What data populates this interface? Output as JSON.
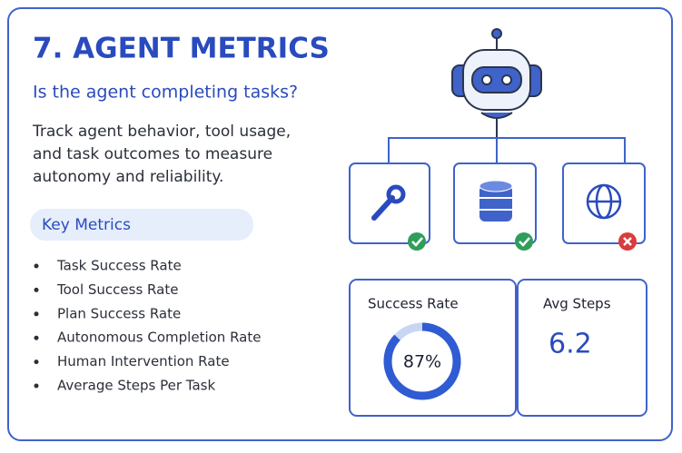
{
  "header": {
    "title": "7. AGENT METRICS",
    "subtitle": "Is the agent completing tasks?"
  },
  "description": [
    "Track agent behavior, tool usage,",
    "and task outcomes to measure",
    "autonomy and reliability."
  ],
  "key_metrics": {
    "heading": "Key Metrics",
    "items": [
      "Task Success Rate",
      "Tool Success Rate",
      "Plan Success Rate",
      "Autonomous Completion Rate",
      "Human Intervention Rate",
      "Average Steps Per Task"
    ]
  },
  "success_rate": {
    "label": "Success Rate",
    "value": 87,
    "value_label": "87%"
  },
  "avg_steps": {
    "label": "Avg Steps",
    "value": "6.2"
  }
}
